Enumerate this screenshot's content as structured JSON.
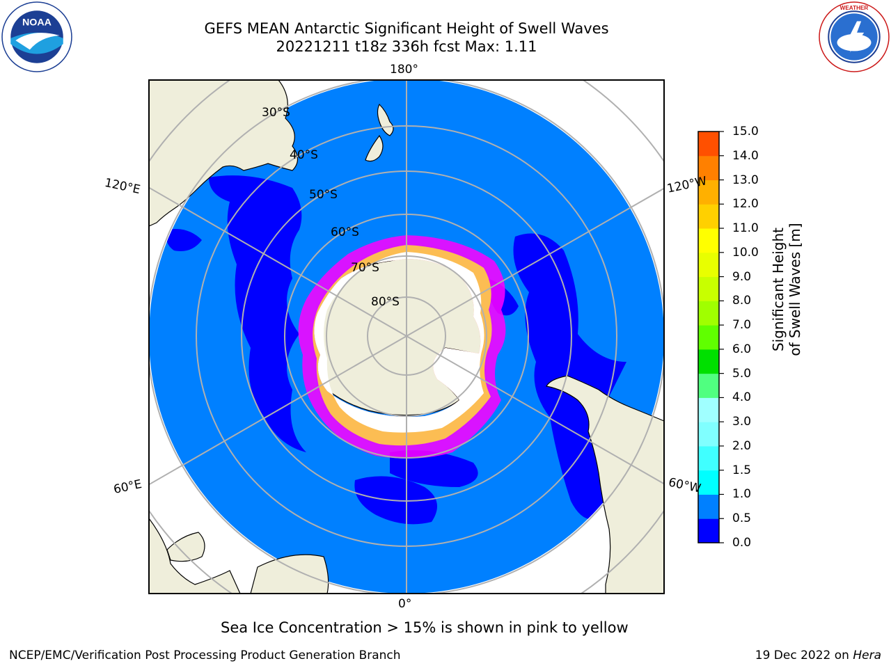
{
  "header": {
    "title_line1": "GEFS MEAN Antarctic Significant Height of Swell Waves",
    "title_line2": "20221211 t18z 336h fcst   Max: 1.11"
  },
  "logos": {
    "left": "noaa-logo",
    "right": "national-weather-service-logo"
  },
  "map": {
    "projection": "south-polar-stereographic",
    "longitude_labels": {
      "top": "180°",
      "bottom": "0°",
      "upper_left": "120°E",
      "upper_right": "120°W",
      "lower_left": "60°E",
      "lower_right": "60°W"
    },
    "latitude_labels": [
      "30°S",
      "40°S",
      "50°S",
      "60°S",
      "70°S",
      "80°S"
    ],
    "colors": {
      "ocean_0_0_5": "#0000ff",
      "ocean_0_5_1_0": "#0080ff",
      "land": "#efeedb",
      "sea_ice": "#ff00ff",
      "grid": "#b0b0b0"
    }
  },
  "colorbar": {
    "label": "Significant Height of Swell Waves [m]",
    "ticks": [
      "0.0",
      "0.5",
      "1.0",
      "1.5",
      "2.0",
      "3.0",
      "4.0",
      "5.0",
      "6.0",
      "7.0",
      "8.0",
      "9.0",
      "10.0",
      "11.0",
      "12.0",
      "13.0",
      "14.0",
      "15.0"
    ],
    "colors": [
      "#0000ff",
      "#0080ff",
      "#00ffff",
      "#40ffff",
      "#80ffff",
      "#a0ffff",
      "#50ff80",
      "#00e000",
      "#60ff00",
      "#a0ff00",
      "#c8ff00",
      "#e8ff00",
      "#ffff00",
      "#ffd000",
      "#ffb000",
      "#ff8000",
      "#ff5000",
      "#ff2000",
      "#ff0000"
    ]
  },
  "footer": {
    "note": "Sea Ice Concentration > 15% is shown in pink to yellow",
    "credit": "NCEP/EMC/Verification Post Processing Product Generation Branch",
    "date": "19 Dec 2022 on",
    "host": "Hera"
  }
}
